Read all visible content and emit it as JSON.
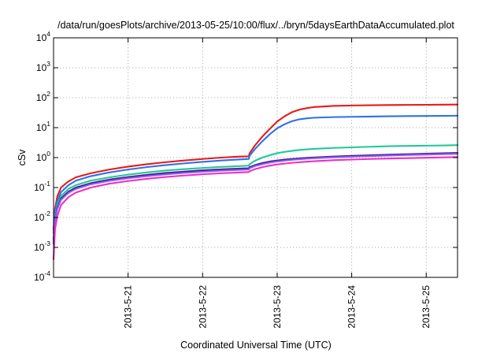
{
  "chart_data": {
    "type": "line",
    "title": "/data/run/goesPlots/archive/2013-05-25/10:00/flux/../bryn/5daysEarthDataAccumulated.plot",
    "xlabel": "Coordinated Universal Time (UTC)",
    "ylabel": "cSv",
    "yscale": "log",
    "ylim": [
      0.0001,
      10000
    ],
    "xlim_days": [
      0.0,
      5.42
    ],
    "y_ticks": [
      {
        "mantissa": "10",
        "exp": "-4",
        "value": 0.0001
      },
      {
        "mantissa": "10",
        "exp": "-3",
        "value": 0.001
      },
      {
        "mantissa": "10",
        "exp": "-2",
        "value": 0.01
      },
      {
        "mantissa": "10",
        "exp": "-1",
        "value": 0.1
      },
      {
        "mantissa": "10",
        "exp": "0",
        "value": 1
      },
      {
        "mantissa": "10",
        "exp": "1",
        "value": 10
      },
      {
        "mantissa": "10",
        "exp": "2",
        "value": 100
      },
      {
        "mantissa": "10",
        "exp": "3",
        "value": 1000
      },
      {
        "mantissa": "10",
        "exp": "4",
        "value": 10000
      }
    ],
    "x_ticks": [
      {
        "label": "2013-5-21",
        "day": 1.0
      },
      {
        "label": "2013-5-22",
        "day": 2.0
      },
      {
        "label": "2013-5-23",
        "day": 3.0
      },
      {
        "label": "2013-5-24",
        "day": 4.0
      },
      {
        "label": "2013-5-25",
        "day": 5.0
      }
    ],
    "grid": true,
    "x": [
      0.0,
      0.02,
      0.05,
      0.1,
      0.2,
      0.3,
      0.5,
      0.75,
      1.0,
      1.25,
      1.5,
      1.75,
      2.0,
      2.25,
      2.5,
      2.62,
      2.63,
      2.7,
      2.8,
      2.9,
      3.0,
      3.1,
      3.2,
      3.3,
      3.4,
      3.5,
      3.75,
      4.0,
      4.25,
      4.5,
      4.75,
      5.0,
      5.25,
      5.42
    ],
    "series": [
      {
        "color": "#e8191b",
        "values": [
          0.004,
          0.02,
          0.05,
          0.1,
          0.16,
          0.22,
          0.3,
          0.4,
          0.5,
          0.6,
          0.7,
          0.8,
          0.9,
          1.0,
          1.08,
          1.1,
          1.4,
          2.5,
          5,
          9,
          16,
          24,
          33,
          40,
          45,
          49,
          53,
          55,
          56,
          57,
          57.5,
          58,
          58.5,
          59
        ]
      },
      {
        "color": "#2c72e6",
        "values": [
          0.003,
          0.015,
          0.035,
          0.07,
          0.12,
          0.17,
          0.24,
          0.32,
          0.4,
          0.48,
          0.56,
          0.64,
          0.72,
          0.8,
          0.87,
          0.9,
          1.15,
          1.9,
          3.5,
          6,
          9.5,
          13,
          16.5,
          19,
          20.5,
          21.5,
          22.5,
          23,
          23.5,
          24,
          24.3,
          24.6,
          24.8,
          25
        ]
      },
      {
        "color": "#1fc89a",
        "values": [
          0.002,
          0.011,
          0.026,
          0.052,
          0.09,
          0.12,
          0.17,
          0.22,
          0.27,
          0.32,
          0.37,
          0.41,
          0.45,
          0.49,
          0.52,
          0.54,
          0.6,
          0.78,
          1.0,
          1.2,
          1.4,
          1.55,
          1.68,
          1.8,
          1.88,
          1.95,
          2.1,
          2.2,
          2.3,
          2.4,
          2.45,
          2.5,
          2.55,
          2.6
        ]
      },
      {
        "color": "#7a1a8e",
        "values": [
          0.0015,
          0.009,
          0.021,
          0.043,
          0.073,
          0.1,
          0.14,
          0.185,
          0.225,
          0.265,
          0.305,
          0.34,
          0.375,
          0.405,
          0.43,
          0.44,
          0.48,
          0.56,
          0.66,
          0.74,
          0.8,
          0.86,
          0.9,
          0.94,
          0.98,
          1.01,
          1.08,
          1.14,
          1.2,
          1.25,
          1.3,
          1.35,
          1.4,
          1.43
        ]
      },
      {
        "color": "#1a2070",
        "values": [
          0.0014,
          0.0085,
          0.02,
          0.041,
          0.07,
          0.096,
          0.135,
          0.177,
          0.215,
          0.253,
          0.29,
          0.325,
          0.355,
          0.385,
          0.41,
          0.42,
          0.46,
          0.54,
          0.63,
          0.71,
          0.77,
          0.82,
          0.87,
          0.91,
          0.95,
          0.98,
          1.05,
          1.1,
          1.16,
          1.21,
          1.26,
          1.3,
          1.35,
          1.38
        ]
      },
      {
        "color": "#8a5cff",
        "values": [
          0.0013,
          0.008,
          0.019,
          0.039,
          0.066,
          0.09,
          0.128,
          0.168,
          0.205,
          0.24,
          0.275,
          0.308,
          0.338,
          0.366,
          0.39,
          0.4,
          0.44,
          0.52,
          0.6,
          0.68,
          0.74,
          0.79,
          0.84,
          0.88,
          0.92,
          0.95,
          1.02,
          1.07,
          1.12,
          1.17,
          1.22,
          1.26,
          1.31,
          1.34
        ]
      },
      {
        "color": "#ee2ec8",
        "values": [
          0.0004,
          0.004,
          0.011,
          0.026,
          0.048,
          0.068,
          0.1,
          0.135,
          0.165,
          0.195,
          0.225,
          0.252,
          0.278,
          0.3,
          0.32,
          0.33,
          0.35,
          0.41,
          0.48,
          0.54,
          0.59,
          0.63,
          0.67,
          0.7,
          0.73,
          0.76,
          0.82,
          0.86,
          0.9,
          0.93,
          0.96,
          0.99,
          1.02,
          1.04
        ]
      }
    ]
  }
}
